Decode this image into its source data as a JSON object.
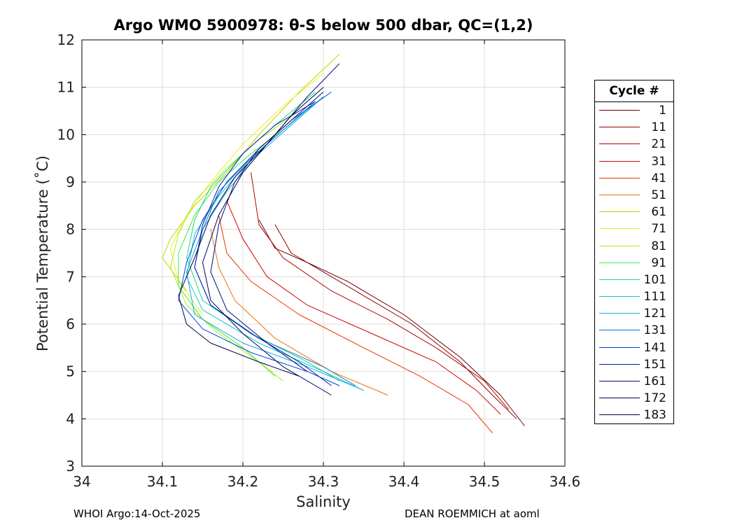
{
  "title": "Argo WMO 5900978: θ-S below 500 dbar,  QC=(1,2)",
  "footer_left": "WHOI Argo:14-Oct-2025",
  "footer_right": "DEAN ROEMMICH at aoml",
  "legend": {
    "title": "Cycle #",
    "items": [
      {
        "label": "1",
        "color": "#6b0000"
      },
      {
        "label": "11",
        "color": "#8f0000"
      },
      {
        "label": "21",
        "color": "#b30000"
      },
      {
        "label": "31",
        "color": "#d20000"
      },
      {
        "label": "41",
        "color": "#e63500"
      },
      {
        "label": "51",
        "color": "#f07000"
      },
      {
        "label": "61",
        "color": "#c8d000"
      },
      {
        "label": "71",
        "color": "#eeee22"
      },
      {
        "label": "81",
        "color": "#a8ee20"
      },
      {
        "label": "91",
        "color": "#44e844"
      },
      {
        "label": "101",
        "color": "#18d888"
      },
      {
        "label": "111",
        "color": "#10c8c8"
      },
      {
        "label": "121",
        "color": "#1aa8e8"
      },
      {
        "label": "131",
        "color": "#0878c8"
      },
      {
        "label": "141",
        "color": "#0040e0"
      },
      {
        "label": "151",
        "color": "#0018b0"
      },
      {
        "label": "161",
        "color": "#000c78"
      },
      {
        "label": "172",
        "color": "#000060"
      },
      {
        "label": "183",
        "color": "#000040"
      }
    ]
  },
  "chart_data": {
    "type": "line",
    "title": "Argo WMO 5900978: θ-S below 500 dbar,  QC=(1,2)",
    "xlabel": "Salinity",
    "ylabel": "Potential Temperature (˚C)",
    "xlim": [
      34,
      34.6
    ],
    "ylim": [
      3,
      12
    ],
    "xticks": [
      34,
      34.1,
      34.2,
      34.3,
      34.4,
      34.5,
      34.6
    ],
    "yticks": [
      3,
      4,
      5,
      6,
      7,
      8,
      9,
      10,
      11,
      12
    ],
    "xtick_labels": [
      "34",
      "34.1",
      "34.2",
      "34.3",
      "34.4",
      "34.5",
      "34.6"
    ],
    "ytick_labels": [
      "3",
      "4",
      "5",
      "6",
      "7",
      "8",
      "9",
      "10",
      "11",
      "12"
    ],
    "grid": true,
    "legend_position": "outside-right",
    "series": [
      {
        "name": "1",
        "x": [
          34.22,
          34.24,
          34.28,
          34.33,
          34.4,
          34.47,
          34.52,
          34.55
        ],
        "y": [
          8.2,
          7.6,
          7.3,
          6.9,
          6.2,
          5.3,
          4.5,
          3.85
        ]
      },
      {
        "name": "11",
        "x": [
          34.24,
          34.26,
          34.3,
          34.35,
          34.41,
          34.47,
          34.51,
          34.54
        ],
        "y": [
          8.1,
          7.5,
          7.1,
          6.6,
          6.0,
          5.2,
          4.5,
          4.0
        ]
      },
      {
        "name": "21",
        "x": [
          34.21,
          34.22,
          34.25,
          34.31,
          34.38,
          34.44,
          34.5,
          34.53
        ],
        "y": [
          9.2,
          8.1,
          7.4,
          6.7,
          6.1,
          5.5,
          4.8,
          4.2
        ]
      },
      {
        "name": "31",
        "x": [
          34.18,
          34.2,
          34.23,
          34.28,
          34.36,
          34.44,
          34.49,
          34.52
        ],
        "y": [
          8.6,
          7.8,
          7.0,
          6.4,
          5.8,
          5.2,
          4.6,
          4.1
        ]
      },
      {
        "name": "41",
        "x": [
          34.17,
          34.18,
          34.21,
          34.27,
          34.35,
          34.42,
          34.48,
          34.51
        ],
        "y": [
          8.3,
          7.5,
          6.9,
          6.2,
          5.5,
          4.9,
          4.3,
          3.7
        ]
      },
      {
        "name": "51",
        "x": [
          34.16,
          34.17,
          34.19,
          34.24,
          34.31,
          34.38
        ],
        "y": [
          8.0,
          7.2,
          6.5,
          5.7,
          5.0,
          4.5
        ]
      },
      {
        "name": "61",
        "x": [
          34.32,
          34.27,
          34.22,
          34.18,
          34.14,
          34.11,
          34.1,
          34.13
        ],
        "y": [
          11.7,
          10.9,
          10.0,
          9.2,
          8.5,
          7.8,
          7.4,
          6.7
        ]
      },
      {
        "name": "71",
        "x": [
          34.3,
          34.25,
          34.2,
          34.16,
          34.13,
          34.11,
          34.12,
          34.15
        ],
        "y": [
          11.3,
          10.6,
          9.8,
          9.0,
          8.3,
          7.6,
          6.9,
          6.2
        ]
      },
      {
        "name": "81",
        "x": [
          34.27,
          34.22,
          34.18,
          34.14,
          34.12,
          34.11,
          34.13,
          34.17,
          34.22,
          34.25
        ],
        "y": [
          10.5,
          9.9,
          9.3,
          8.6,
          7.9,
          7.2,
          6.4,
          5.8,
          5.2,
          4.8
        ]
      },
      {
        "name": "91",
        "x": [
          34.25,
          34.21,
          34.17,
          34.14,
          34.12,
          34.12,
          34.15,
          34.2,
          34.24
        ],
        "y": [
          10.1,
          9.6,
          9.0,
          8.3,
          7.5,
          6.8,
          6.1,
          5.5,
          4.9
        ]
      },
      {
        "name": "101",
        "x": [
          34.29,
          34.24,
          34.2,
          34.16,
          34.14,
          34.13,
          34.15,
          34.21,
          34.28,
          34.32
        ],
        "y": [
          10.9,
          10.2,
          9.6,
          8.9,
          8.2,
          7.4,
          6.5,
          5.8,
          5.2,
          4.8
        ]
      },
      {
        "name": "111",
        "x": [
          34.3,
          34.25,
          34.21,
          34.17,
          34.14,
          34.13,
          34.15,
          34.22,
          34.3,
          34.35
        ],
        "y": [
          10.8,
          10.1,
          9.5,
          8.7,
          7.9,
          7.0,
          6.3,
          5.6,
          5.0,
          4.6
        ]
      },
      {
        "name": "121",
        "x": [
          34.3,
          34.26,
          34.22,
          34.18,
          34.15,
          34.13,
          34.14,
          34.2,
          34.28,
          34.35
        ],
        "y": [
          10.8,
          10.2,
          9.6,
          8.8,
          8.0,
          7.1,
          6.2,
          5.6,
          5.1,
          4.6
        ]
      },
      {
        "name": "131",
        "x": [
          34.29,
          34.25,
          34.21,
          34.17,
          34.15,
          34.14,
          34.16,
          34.22,
          34.3,
          34.34
        ],
        "y": [
          10.7,
          10.1,
          9.5,
          8.8,
          8.0,
          7.2,
          6.4,
          5.7,
          5.1,
          4.7
        ]
      },
      {
        "name": "141",
        "x": [
          34.31,
          34.26,
          34.22,
          34.18,
          34.15,
          34.13,
          34.12,
          34.15,
          34.21,
          34.28,
          34.32
        ],
        "y": [
          10.9,
          10.3,
          9.7,
          9.0,
          8.2,
          7.3,
          6.5,
          5.9,
          5.4,
          5.0,
          4.7
        ]
      },
      {
        "name": "151",
        "x": [
          34.29,
          34.24,
          34.2,
          34.17,
          34.15,
          34.14,
          34.16,
          34.21,
          34.27,
          34.31
        ],
        "y": [
          10.7,
          10.2,
          9.6,
          8.9,
          8.1,
          7.2,
          6.4,
          5.8,
          5.2,
          4.7
        ]
      },
      {
        "name": "161",
        "x": [
          34.3,
          34.26,
          34.22,
          34.19,
          34.17,
          34.16,
          34.18,
          34.23,
          34.28
        ],
        "y": [
          10.9,
          10.3,
          9.7,
          9.0,
          8.1,
          7.1,
          6.3,
          5.6,
          5.0
        ]
      },
      {
        "name": "172",
        "x": [
          34.32,
          34.28,
          34.24,
          34.2,
          34.17,
          34.15,
          34.16,
          34.2,
          34.25,
          34.31
        ],
        "y": [
          11.5,
          10.8,
          10.0,
          9.2,
          8.3,
          7.3,
          6.5,
          5.8,
          5.1,
          4.5
        ]
      },
      {
        "name": "183",
        "x": [
          34.3,
          34.26,
          34.23,
          34.19,
          34.16,
          34.14,
          34.12,
          34.13,
          34.16,
          34.22,
          34.27
        ],
        "y": [
          11.0,
          10.4,
          9.8,
          9.1,
          8.3,
          7.4,
          6.6,
          6.0,
          5.6,
          5.2,
          4.9
        ]
      }
    ]
  }
}
